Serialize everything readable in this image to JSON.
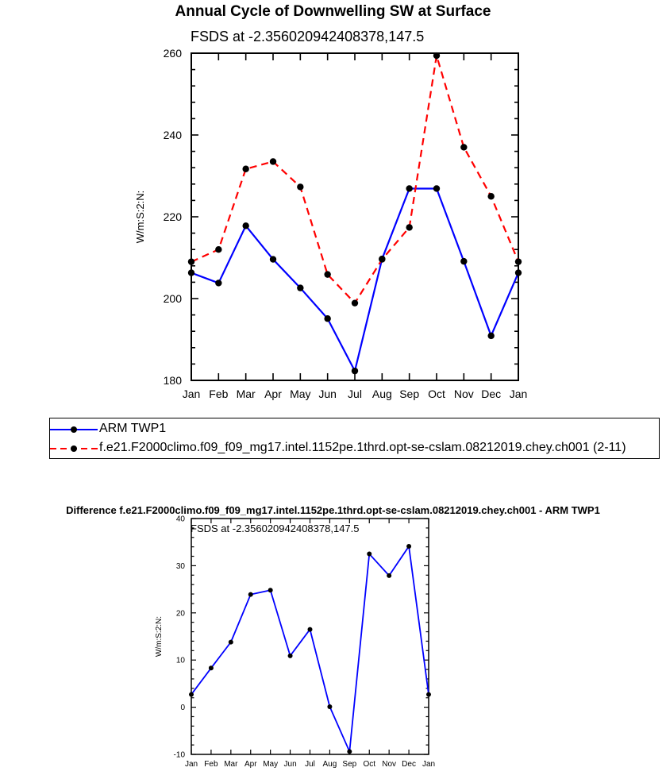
{
  "chart_data": [
    {
      "type": "line",
      "title": "Annual Cycle of Downwelling SW at Surface",
      "subtitle": "FSDS at -2.356020942408378,147.5",
      "xlabel": "",
      "ylabel": "W/m:S:2:N:",
      "categories": [
        "Jan",
        "Feb",
        "Mar",
        "Apr",
        "May",
        "Jun",
        "Jul",
        "Aug",
        "Sep",
        "Oct",
        "Nov",
        "Dec",
        "Jan"
      ],
      "ylim": [
        180,
        260
      ],
      "yticks": [
        180,
        200,
        220,
        240,
        260
      ],
      "series": [
        {
          "name": "ARM TWP1",
          "color": "#0000ff",
          "dash": "solid",
          "values": [
            206.3,
            203.8,
            217.8,
            209.6,
            202.6,
            195.1,
            182.3,
            209.7,
            226.9,
            226.9,
            209.1,
            190.9,
            206.3
          ]
        },
        {
          "name": "f.e21.F2000climo.f09_f09_mg17.intel.1152pe.1thrd.opt-se-cslam.08212019.chey.ch001 (2-11)",
          "color": "#ff0000",
          "dash": "dashed",
          "values": [
            209.0,
            212.0,
            231.7,
            233.5,
            227.3,
            205.9,
            198.9,
            209.6,
            217.4,
            259.4,
            237.0,
            225.0,
            209.0
          ]
        }
      ]
    },
    {
      "type": "line",
      "title": "Difference f.e21.F2000climo.f09_f09_mg17.intel.1152pe.1thrd.opt-se-cslam.08212019.chey.ch001 - ARM TWP1",
      "subtitle": "FSDS at -2.356020942408378,147.5",
      "xlabel": "",
      "ylabel": "W/m:S:2:N:",
      "categories": [
        "Jan",
        "Feb",
        "Mar",
        "Apr",
        "May",
        "Jun",
        "Jul",
        "Aug",
        "Sep",
        "Oct",
        "Nov",
        "Dec",
        "Jan"
      ],
      "ylim": [
        -10,
        40
      ],
      "yticks": [
        -10,
        0,
        10,
        20,
        30,
        40
      ],
      "series": [
        {
          "name": "Difference",
          "color": "#0000ff",
          "dash": "solid",
          "values": [
            2.7,
            8.3,
            13.8,
            23.9,
            24.8,
            10.9,
            16.5,
            0.1,
            -9.4,
            32.5,
            27.9,
            34.1,
            2.7
          ]
        }
      ]
    }
  ]
}
